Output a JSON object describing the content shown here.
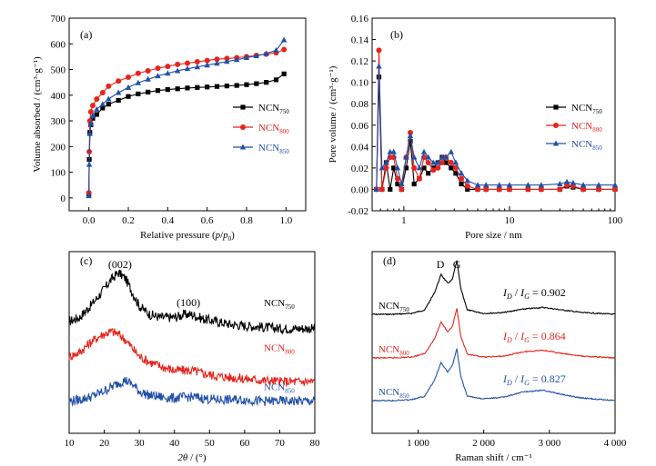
{
  "colors": {
    "NCN750": "#000000",
    "NCN800": "#e8231c",
    "NCN850": "#2150a8"
  },
  "chart_data": [
    {
      "type": "line",
      "panel": "(a)",
      "xlabel": "Relative pressure (p/p0)",
      "ylabel": "Volume absorbed / (cm³·g⁻¹)",
      "xlim": [
        -0.1,
        1.1
      ],
      "ylim": [
        -50,
        700
      ],
      "xticks": [
        0.0,
        0.2,
        0.4,
        0.6,
        0.8,
        1.0
      ],
      "xtick_labels": [
        "0.0",
        "0.2",
        "0.4",
        "0.6",
        "0.8",
        "1.0"
      ],
      "yticks": [
        0,
        100,
        200,
        300,
        400,
        500,
        600,
        700
      ],
      "ytick_labels": [
        "0",
        "100",
        "200",
        "300",
        "400",
        "500",
        "600",
        "700"
      ],
      "legend_position": "center-right",
      "series": [
        {
          "name": "NCN750",
          "name_base": "NCN",
          "name_sub": "750",
          "color": "#000000",
          "marker": "square",
          "x": [
            0.0,
            0.002,
            0.005,
            0.01,
            0.02,
            0.04,
            0.07,
            0.1,
            0.15,
            0.2,
            0.25,
            0.3,
            0.35,
            0.4,
            0.45,
            0.5,
            0.55,
            0.6,
            0.65,
            0.7,
            0.75,
            0.8,
            0.85,
            0.9,
            0.95,
            0.99
          ],
          "y": [
            15,
            150,
            255,
            285,
            310,
            325,
            350,
            365,
            380,
            395,
            405,
            412,
            418,
            422,
            425,
            428,
            430,
            432,
            434,
            436,
            438,
            441,
            445,
            450,
            460,
            483
          ]
        },
        {
          "name": "NCN800",
          "name_base": "NCN",
          "name_sub": "800",
          "color": "#e8231c",
          "marker": "circle",
          "x": [
            0.0,
            0.002,
            0.005,
            0.01,
            0.02,
            0.04,
            0.07,
            0.1,
            0.15,
            0.2,
            0.25,
            0.3,
            0.35,
            0.4,
            0.45,
            0.5,
            0.55,
            0.6,
            0.65,
            0.7,
            0.75,
            0.8,
            0.85,
            0.9,
            0.95,
            0.99
          ],
          "y": [
            20,
            180,
            300,
            335,
            360,
            385,
            410,
            435,
            455,
            470,
            485,
            495,
            505,
            512,
            520,
            525,
            530,
            535,
            540,
            543,
            546,
            550,
            555,
            560,
            565,
            578
          ]
        },
        {
          "name": "NCN850",
          "name_base": "NCN",
          "name_sub": "850",
          "color": "#2150a8",
          "marker": "triangle",
          "x": [
            0.0,
            0.002,
            0.005,
            0.01,
            0.02,
            0.04,
            0.07,
            0.1,
            0.15,
            0.2,
            0.25,
            0.3,
            0.35,
            0.4,
            0.45,
            0.5,
            0.55,
            0.6,
            0.65,
            0.7,
            0.75,
            0.8,
            0.85,
            0.9,
            0.95,
            0.99
          ],
          "y": [
            8,
            130,
            250,
            290,
            320,
            345,
            365,
            385,
            410,
            430,
            448,
            462,
            475,
            485,
            495,
            503,
            510,
            517,
            524,
            531,
            538,
            546,
            553,
            562,
            575,
            615
          ]
        }
      ]
    },
    {
      "type": "line",
      "panel": "(b)",
      "xlabel": "Pore size / nm",
      "ylabel": "Pore volume / (cm³·g⁻¹)",
      "xscale": "log",
      "xlim": [
        0.5,
        100
      ],
      "ylim": [
        -0.02,
        0.16
      ],
      "xticks": [
        1,
        10,
        100
      ],
      "xtick_labels": [
        "1",
        "10",
        "100"
      ],
      "yticks": [
        -0.02,
        0.0,
        0.02,
        0.04,
        0.06,
        0.08,
        0.1,
        0.12,
        0.14,
        0.16
      ],
      "ytick_labels": [
        "-0.02",
        "0.00",
        "0.02",
        "0.04",
        "0.06",
        "0.08",
        "0.10",
        "0.12",
        "0.14",
        "0.16"
      ],
      "legend_position": "center-right",
      "series": [
        {
          "name": "NCN750",
          "name_base": "NCN",
          "name_sub": "750",
          "color": "#000000",
          "marker": "square",
          "x": [
            0.55,
            0.58,
            0.62,
            0.68,
            0.74,
            0.8,
            0.87,
            0.95,
            1.05,
            1.15,
            1.25,
            1.4,
            1.55,
            1.7,
            1.9,
            2.1,
            2.3,
            2.5,
            2.8,
            3.1,
            3.5,
            4,
            5,
            6,
            8,
            10,
            15,
            20,
            30,
            35,
            40,
            50,
            70,
            100
          ],
          "y": [
            0.0,
            0.105,
            0.0,
            0.025,
            0.0,
            0.02,
            0.005,
            0.0,
            0.02,
            0.045,
            0.005,
            0.01,
            0.02,
            0.015,
            0.02,
            0.025,
            0.03,
            0.025,
            0.02,
            0.015,
            0.005,
            0.0,
            0.0,
            0.0,
            0.0,
            0.0,
            0.0,
            0.0,
            0.0,
            0.003,
            0.002,
            0.0,
            0.0,
            0.0
          ]
        },
        {
          "name": "NCN800",
          "name_base": "NCN",
          "name_sub": "800",
          "color": "#e8231c",
          "marker": "circle",
          "x": [
            0.55,
            0.58,
            0.62,
            0.68,
            0.74,
            0.8,
            0.87,
            0.95,
            1.05,
            1.15,
            1.25,
            1.4,
            1.55,
            1.7,
            1.9,
            2.1,
            2.3,
            2.5,
            2.8,
            3.1,
            3.5,
            4,
            5,
            6,
            8,
            10,
            15,
            20,
            30,
            35,
            40,
            50,
            70,
            100
          ],
          "y": [
            0.0,
            0.13,
            0.0,
            0.02,
            0.03,
            0.03,
            0.01,
            0.0,
            0.03,
            0.053,
            0.02,
            0.01,
            0.03,
            0.025,
            0.018,
            0.02,
            0.025,
            0.03,
            0.025,
            0.02,
            0.01,
            0.003,
            0.0,
            0.0,
            0.0,
            0.0,
            0.0,
            0.0,
            0.0,
            0.004,
            0.003,
            0.0,
            0.0,
            0.0
          ]
        },
        {
          "name": "NCN850",
          "name_base": "NCN",
          "name_sub": "850",
          "color": "#2150a8",
          "marker": "triangle",
          "x": [
            0.55,
            0.58,
            0.62,
            0.68,
            0.74,
            0.8,
            0.87,
            0.95,
            1.05,
            1.15,
            1.25,
            1.4,
            1.55,
            1.7,
            1.9,
            2.1,
            2.3,
            2.5,
            2.8,
            3.1,
            3.5,
            4,
            5,
            6,
            8,
            10,
            15,
            20,
            30,
            35,
            40,
            50,
            70,
            100
          ],
          "y": [
            0.0,
            0.115,
            0.02,
            0.025,
            0.035,
            0.035,
            0.02,
            0.005,
            0.03,
            0.05,
            0.03,
            0.02,
            0.035,
            0.03,
            0.025,
            0.025,
            0.03,
            0.03,
            0.035,
            0.025,
            0.015,
            0.008,
            0.004,
            0.004,
            0.004,
            0.004,
            0.004,
            0.004,
            0.005,
            0.007,
            0.006,
            0.004,
            0.004,
            0.004
          ]
        }
      ]
    },
    {
      "type": "line",
      "panel": "(c)",
      "xlabel": "2θ / (°)",
      "ylabel": "",
      "xlim": [
        10,
        80
      ],
      "xticks": [
        10,
        20,
        30,
        40,
        50,
        60,
        70,
        80
      ],
      "xtick_labels": [
        "10",
        "20",
        "30",
        "40",
        "50",
        "60",
        "70",
        "80"
      ],
      "annotations": [
        "(002)",
        "(100)"
      ],
      "series": [
        {
          "name": "NCN750",
          "name_base": "NCN",
          "name_sub": "750",
          "color": "#000000",
          "x": [
            10,
            13,
            16,
            19,
            22,
            24,
            26,
            28,
            30,
            33,
            36,
            40,
            43,
            45,
            48,
            52,
            56,
            60,
            65,
            70,
            75,
            80
          ],
          "y": [
            0.55,
            0.58,
            0.66,
            0.75,
            0.85,
            0.9,
            0.86,
            0.76,
            0.66,
            0.6,
            0.58,
            0.58,
            0.6,
            0.6,
            0.57,
            0.55,
            0.53,
            0.52,
            0.51,
            0.5,
            0.5,
            0.5
          ]
        },
        {
          "name": "NCN800",
          "name_base": "NCN",
          "name_sub": "800",
          "color": "#e8231c",
          "x": [
            10,
            13,
            16,
            19,
            22,
            24,
            26,
            28,
            30,
            33,
            36,
            40,
            43,
            45,
            48,
            52,
            56,
            60,
            65,
            70,
            75,
            80
          ],
          "y": [
            0.3,
            0.33,
            0.4,
            0.45,
            0.48,
            0.46,
            0.42,
            0.36,
            0.3,
            0.26,
            0.23,
            0.2,
            0.2,
            0.2,
            0.18,
            0.16,
            0.15,
            0.14,
            0.13,
            0.12,
            0.12,
            0.12
          ]
        },
        {
          "name": "NCN850",
          "name_base": "NCN",
          "name_sub": "850",
          "color": "#2150a8",
          "x": [
            10,
            13,
            16,
            19,
            22,
            24,
            26,
            28,
            30,
            33,
            36,
            40,
            43,
            45,
            48,
            52,
            56,
            60,
            65,
            70,
            75,
            80
          ],
          "y": [
            -0.02,
            -0.01,
            0.01,
            0.04,
            0.08,
            0.11,
            0.13,
            0.1,
            0.05,
            0.02,
            0.01,
            0.0,
            0.01,
            0.01,
            0.0,
            -0.01,
            -0.01,
            -0.01,
            -0.02,
            -0.02,
            -0.02,
            -0.02
          ]
        }
      ]
    },
    {
      "type": "line",
      "panel": "(d)",
      "xlabel": "Raman shift / cm⁻¹",
      "ylabel": "",
      "xlim": [
        300,
        4000
      ],
      "xticks": [
        1000,
        2000,
        3000,
        4000
      ],
      "xtick_labels": [
        "1 000",
        "2 000",
        "3 000",
        "4 000"
      ],
      "annotations": [
        "D",
        "G"
      ],
      "series": [
        {
          "name": "NCN750",
          "name_base": "NCN",
          "name_sub": "750",
          "color": "#000000",
          "ratio_value": "0.902",
          "x": [
            300,
            600,
            900,
            1100,
            1250,
            1350,
            1450,
            1520,
            1590,
            1650,
            1750,
            2000,
            2300,
            2600,
            2900,
            3200,
            3500,
            4000
          ],
          "y": [
            0.0,
            0.0,
            0.01,
            0.05,
            0.25,
            0.46,
            0.36,
            0.4,
            0.62,
            0.3,
            0.05,
            0.01,
            0.02,
            0.06,
            0.08,
            0.05,
            0.02,
            0.0
          ]
        },
        {
          "name": "NCN800",
          "name_base": "NCN",
          "name_sub": "800",
          "color": "#e8231c",
          "ratio_value": "0.864",
          "x": [
            300,
            600,
            900,
            1100,
            1250,
            1350,
            1450,
            1520,
            1590,
            1650,
            1750,
            2000,
            2300,
            2600,
            2900,
            3200,
            3500,
            4000
          ],
          "y": [
            0.0,
            0.0,
            0.01,
            0.05,
            0.22,
            0.42,
            0.3,
            0.36,
            0.58,
            0.25,
            0.04,
            0.01,
            0.02,
            0.07,
            0.09,
            0.05,
            0.02,
            0.0
          ]
        },
        {
          "name": "NCN850",
          "name_base": "NCN",
          "name_sub": "850",
          "color": "#2150a8",
          "ratio_value": "0.827",
          "x": [
            300,
            600,
            900,
            1100,
            1250,
            1350,
            1450,
            1520,
            1590,
            1650,
            1750,
            2000,
            2300,
            2600,
            2900,
            3200,
            3500,
            4000
          ],
          "y": [
            0.0,
            0.0,
            0.01,
            0.05,
            0.24,
            0.44,
            0.33,
            0.4,
            0.6,
            0.28,
            0.05,
            0.02,
            0.04,
            0.1,
            0.12,
            0.07,
            0.03,
            0.0
          ]
        }
      ]
    }
  ]
}
